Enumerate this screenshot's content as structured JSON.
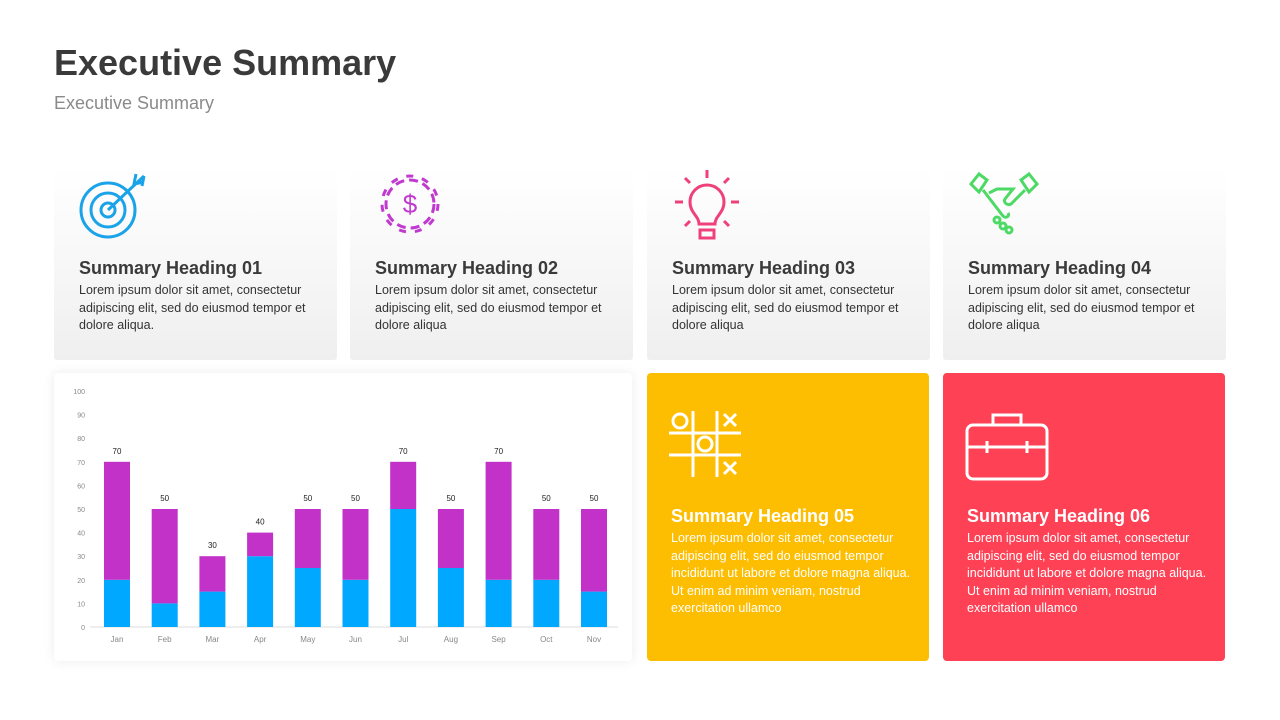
{
  "header": {
    "title": "Executive Summary",
    "subtitle": "Executive Summary"
  },
  "cards": [
    {
      "heading": "Summary Heading 01",
      "text": "Lorem ipsum dolor sit amet, consectetur adipiscing elit, sed do eiusmod tempor et dolore aliqua.",
      "icon": "target-icon",
      "color": "#1aa3e8"
    },
    {
      "heading": "Summary Heading 02",
      "text": "Lorem ipsum dolor sit amet, consectetur adipiscing elit, sed do eiusmod tempor et dolore aliqua",
      "icon": "gear-dollar-icon",
      "color": "#c13ad0"
    },
    {
      "heading": "Summary Heading 03",
      "text": "Lorem ipsum dolor sit amet, consectetur adipiscing elit, sed do eiusmod tempor et dolore aliqua",
      "icon": "lightbulb-icon",
      "color": "#f0407a"
    },
    {
      "heading": "Summary Heading 04",
      "text": "Lorem ipsum dolor sit amet, consectetur adipiscing elit, sed do eiusmod tempor et dolore aliqua",
      "icon": "handshake-icon",
      "color": "#4cd964"
    },
    {
      "heading": "Summary Heading 05",
      "text": "Lorem ipsum dolor sit amet, consectetur adipiscing elit, sed do eiusmod tempor incididunt ut labore et dolore magna aliqua. Ut enim ad minim veniam, nostrud exercitation ullamco",
      "icon": "tic-tac-toe-icon",
      "color": "#fdbd00"
    },
    {
      "heading": "Summary Heading 06",
      "text": "Lorem ipsum dolor sit amet, consectetur adipiscing elit, sed do eiusmod tempor incididunt ut labore et dolore magna aliqua. Ut enim ad minim veniam, nostrud exercitation ullamco",
      "icon": "briefcase-icon",
      "color": "#fe4155"
    }
  ],
  "chart_data": {
    "type": "bar",
    "stacked": true,
    "categories": [
      "Jan",
      "Feb",
      "Mar",
      "Apr",
      "May",
      "Jun",
      "Jul",
      "Aug",
      "Sep",
      "Oct",
      "Nov"
    ],
    "series": [
      {
        "values": [
          20,
          10,
          15,
          30,
          25,
          20,
          50,
          25,
          20,
          20,
          15
        ],
        "color": "#00a8ff"
      },
      {
        "values": [
          50,
          40,
          15,
          10,
          25,
          30,
          20,
          25,
          50,
          30,
          35
        ],
        "color": "#c232c8"
      }
    ],
    "totals": [
      70,
      50,
      30,
      40,
      50,
      50,
      70,
      50,
      70,
      50,
      50
    ],
    "ylim": [
      0,
      100
    ],
    "yticks": [
      0,
      10,
      20,
      30,
      40,
      50,
      60,
      70,
      80,
      90,
      100
    ],
    "grid": false,
    "legend": "none"
  }
}
